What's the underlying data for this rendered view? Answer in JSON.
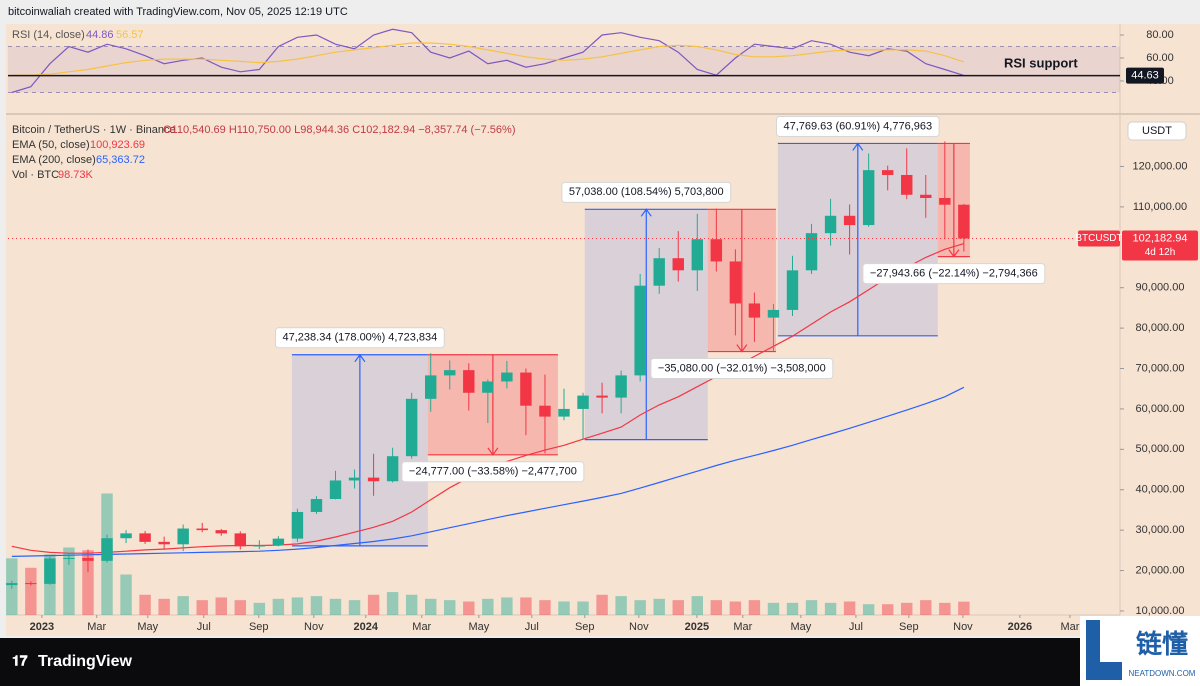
{
  "header": "bitcoinwaliah created with TradingView.com, Nov 05, 2025 12:19 UTC",
  "footer": {
    "logo": "TradingView",
    "watermark": "链懂",
    "watermark_url": "NEATDOWN.COM"
  },
  "chart_data": [
    {
      "type": "candlestick",
      "symbol": "Bitcoin / TetherUS · 1W · Binance",
      "ohlc_label": "O110,540.69 H110,750.00 L98,944.36 C102,182.94 −8,357.74 (−7.56%)",
      "currency": "USDT",
      "up_color": "#22ab94",
      "down_color": "#f23645",
      "x": [
        0,
        1,
        2,
        3,
        4,
        5,
        6,
        7,
        8,
        9,
        10,
        11,
        12,
        13,
        14,
        15,
        16,
        17,
        18,
        19,
        20,
        21,
        22,
        23,
        24,
        25,
        26,
        27,
        28,
        29,
        30,
        31,
        32,
        33,
        34,
        35,
        36,
        37,
        38,
        39,
        40,
        41,
        42,
        43,
        44,
        45,
        46,
        47,
        48,
        49,
        50
      ],
      "open": [
        16400,
        16900,
        16700,
        23000,
        23100,
        22400,
        28000,
        29200,
        27100,
        26500,
        30400,
        30000,
        29200,
        26000,
        26200,
        27900,
        34500,
        37700,
        42300,
        43000,
        42100,
        48300,
        62500,
        68300,
        69600,
        64000,
        66800,
        69000,
        60800,
        58100,
        60000,
        63300,
        62800,
        68300,
        90500,
        97300,
        94300,
        102000,
        96500,
        86100,
        82600,
        84500,
        94300,
        103500,
        107800,
        105500,
        119100,
        117900,
        113000,
        112200,
        110540.69
      ],
      "high": [
        17500,
        17300,
        23400,
        24300,
        25200,
        28900,
        30000,
        29800,
        28400,
        31400,
        31800,
        30300,
        29700,
        27500,
        28500,
        35300,
        38400,
        44700,
        45000,
        48900,
        50400,
        64000,
        73800,
        72000,
        71300,
        67300,
        71900,
        70000,
        68500,
        65000,
        64000,
        66500,
        69500,
        93400,
        99800,
        104000,
        108300,
        109600,
        99500,
        88800,
        86000,
        97900,
        105800,
        112000,
        110600,
        123200,
        120200,
        124500,
        117900,
        126200,
        110750
      ],
      "low": [
        15500,
        16300,
        16500,
        21400,
        19600,
        22000,
        26800,
        26600,
        25300,
        24800,
        29500,
        28600,
        25200,
        25300,
        26000,
        27100,
        34000,
        37600,
        40300,
        38500,
        41800,
        47700,
        59300,
        64800,
        59600,
        56500,
        65100,
        53500,
        49000,
        57200,
        52600,
        58900,
        58900,
        66800,
        88500,
        91500,
        89200,
        94000,
        78200,
        76600,
        74400,
        83000,
        93400,
        100400,
        98200,
        105100,
        114100,
        111900,
        107300,
        102000,
        98944.36
      ],
      "close": [
        16900,
        16700,
        23000,
        23100,
        22400,
        28000,
        29200,
        27100,
        26500,
        30400,
        30000,
        29200,
        26000,
        26200,
        27900,
        34500,
        37700,
        42300,
        43000,
        42100,
        48300,
        62500,
        68300,
        69600,
        64000,
        66800,
        69000,
        60800,
        58100,
        60000,
        63300,
        62800,
        68300,
        90500,
        97300,
        94300,
        102000,
        96500,
        86100,
        82600,
        84500,
        94300,
        103500,
        107800,
        105500,
        119100,
        117900,
        113000,
        112200,
        110540.69,
        102182.94
      ],
      "series": [
        {
          "name": "EMA (50, close)",
          "color": "#f23645",
          "value_label": "100,923.69",
          "values": [
            26000,
            25000,
            24500,
            24300,
            24300,
            24500,
            24800,
            25100,
            25300,
            25600,
            25900,
            26100,
            26200,
            26200,
            26300,
            26600,
            27300,
            28300,
            29500,
            30700,
            32200,
            34500,
            37500,
            40500,
            43000,
            45000,
            47000,
            48500,
            49800,
            51000,
            52500,
            54000,
            55500,
            58500,
            61000,
            63000,
            65500,
            68000,
            70500,
            73000,
            75500,
            78000,
            81000,
            84000,
            86500,
            89500,
            92500,
            95000,
            97500,
            99500,
            100923.69
          ]
        },
        {
          "name": "EMA (200, close)",
          "color": "#2962ff",
          "value_label": "65,363.72",
          "values": [
            23500,
            23600,
            23700,
            23800,
            23900,
            24000,
            24100,
            24200,
            24300,
            24400,
            24500,
            24600,
            24700,
            24800,
            25000,
            25300,
            25700,
            26200,
            26700,
            27200,
            27800,
            28600,
            29600,
            30600,
            31600,
            32600,
            33600,
            34500,
            35400,
            36300,
            37200,
            38100,
            39100,
            40400,
            41800,
            43200,
            44600,
            46000,
            47300,
            48500,
            49700,
            51000,
            52400,
            53800,
            55200,
            56700,
            58200,
            59700,
            61300,
            63000,
            65363.72
          ]
        }
      ],
      "volume": {
        "name": "Vol · BTC",
        "value_label": "98.73K",
        "ylim": [
          0,
          1000000
        ],
        "values": [
          420000,
          350000,
          450000,
          500000,
          480000,
          900000,
          300000,
          150000,
          120000,
          140000,
          110000,
          130000,
          110000,
          90000,
          120000,
          130000,
          140000,
          120000,
          110000,
          150000,
          170000,
          150000,
          120000,
          110000,
          100000,
          120000,
          130000,
          130000,
          110000,
          100000,
          100000,
          150000,
          140000,
          110000,
          120000,
          110000,
          140000,
          110000,
          100000,
          110000,
          90000,
          90000,
          110000,
          90000,
          100000,
          80000,
          80000,
          90000,
          110000,
          90000,
          98730
        ]
      },
      "last_price": {
        "value": 102182.94,
        "label": "102,182.94",
        "symbol": "BTCUSDT",
        "countdown": "4d 12h"
      },
      "xlim": [
        -0.2,
        58.2
      ],
      "xticks": [
        {
          "value": 1.58,
          "label": "2023"
        },
        {
          "value": 4.46,
          "label": "Mar"
        },
        {
          "value": 7.14,
          "label": "May"
        },
        {
          "value": 10.08,
          "label": "Jul"
        },
        {
          "value": 12.97,
          "label": "Sep"
        },
        {
          "value": 15.86,
          "label": "Nov"
        },
        {
          "value": 18.59,
          "label": "2024"
        },
        {
          "value": 21.53,
          "label": "Mar"
        },
        {
          "value": 24.53,
          "label": "May"
        },
        {
          "value": 27.31,
          "label": "Jul"
        },
        {
          "value": 30.09,
          "label": "Sep"
        },
        {
          "value": 32.93,
          "label": "Nov"
        },
        {
          "value": 35.98,
          "label": "2025"
        },
        {
          "value": 38.39,
          "label": "Mar"
        },
        {
          "value": 41.44,
          "label": "May"
        },
        {
          "value": 44.33,
          "label": "Jul"
        },
        {
          "value": 47.11,
          "label": "Sep"
        },
        {
          "value": 49.95,
          "label": "Nov"
        },
        {
          "value": 52.94,
          "label": "2026"
        },
        {
          "value": 55.57,
          "label": "Mar"
        }
      ],
      "ylim": [
        9000,
        132000
      ],
      "yticks": [
        {
          "value": 10000,
          "label": "10,000.00"
        },
        {
          "value": 20000,
          "label": "20,000.00"
        },
        {
          "value": 30000,
          "label": "30,000.00"
        },
        {
          "value": 40000,
          "label": "40,000.00"
        },
        {
          "value": 50000,
          "label": "50,000.00"
        },
        {
          "value": 60000,
          "label": "60,000.00"
        },
        {
          "value": 70000,
          "label": "70,000.00"
        },
        {
          "value": 80000,
          "label": "80,000.00"
        },
        {
          "value": 90000,
          "label": "90,000.00"
        },
        {
          "value": 110000,
          "label": "110,000.00"
        },
        {
          "value": 120000,
          "label": "120,000.00"
        }
      ],
      "measurements": [
        {
          "label": "47,238.34 (178.00%) 4,723,834",
          "color": "#2962ff",
          "x": [
            14.71,
            21.85
          ],
          "y": [
            26100,
            73400
          ]
        },
        {
          "label": "−24,777.00 (−33.58%) −2,477,700",
          "color": "#f23645",
          "x": [
            21.85,
            28.68
          ],
          "y": [
            73400,
            48650
          ]
        },
        {
          "label": "57,038.00 (108.54%) 5,703,800",
          "color": "#2962ff",
          "x": [
            30.09,
            36.55
          ],
          "y": [
            52400,
            109400
          ]
        },
        {
          "label": "−35,080.00 (−32.01%) −3,508,000",
          "color": "#f23645",
          "x": [
            36.55,
            40.13
          ],
          "y": [
            109400,
            74200
          ]
        },
        {
          "label": "47,769.63 (60.91%) 4,776,963",
          "color": "#2962ff",
          "x": [
            40.23,
            48.63
          ],
          "y": [
            78100,
            125700
          ]
        },
        {
          "label": "−27,943.66 (−22.14%) −2,794,366",
          "color": "#f23645",
          "x": [
            48.63,
            50.32
          ],
          "y": [
            125700,
            97700
          ]
        }
      ]
    },
    {
      "type": "line",
      "title": "RSI (14, close)",
      "x": [
        0,
        1,
        2,
        3,
        4,
        5,
        6,
        7,
        8,
        9,
        10,
        11,
        12,
        13,
        14,
        15,
        16,
        17,
        18,
        19,
        20,
        21,
        22,
        23,
        24,
        25,
        26,
        27,
        28,
        29,
        30,
        31,
        32,
        33,
        34,
        35,
        36,
        37,
        38,
        39,
        40,
        41,
        42,
        43,
        44,
        45,
        46,
        47,
        48,
        49,
        50
      ],
      "xlim": [
        -0.2,
        58.2
      ],
      "series": [
        {
          "color": "#7e57c2",
          "values": [
            30,
            35,
            55,
            70,
            65,
            72,
            68,
            62,
            55,
            58,
            60,
            52,
            48,
            50,
            70,
            78,
            80,
            72,
            68,
            80,
            85,
            82,
            65,
            60,
            66,
            55,
            58,
            52,
            55,
            60,
            65,
            80,
            82,
            78,
            75,
            65,
            50,
            45,
            60,
            72,
            70,
            68,
            75,
            72,
            65,
            62,
            68,
            66,
            55,
            50,
            44.86
          ]
        },
        {
          "color": "#f5c342",
          "values": [
            45,
            45,
            46,
            48,
            50,
            53,
            56,
            58,
            59,
            59,
            59,
            58,
            57,
            56,
            57,
            59,
            62,
            65,
            67,
            69,
            71,
            73,
            73,
            72,
            70,
            67,
            64,
            61,
            59,
            58,
            59,
            61,
            64,
            67,
            70,
            71,
            70,
            67,
            63,
            61,
            61,
            62,
            64,
            66,
            67,
            67,
            67,
            67,
            66,
            62,
            56.57
          ]
        }
      ],
      "band": [
        30,
        70
      ],
      "level": {
        "value": 44.63,
        "label": "44.63",
        "note": "RSI support"
      },
      "ylim": [
        13,
        88.7
      ],
      "yticks": [
        {
          "value": 40,
          "label": "40.00"
        },
        {
          "value": 60,
          "label": "60.00"
        },
        {
          "value": 80,
          "label": "80.00"
        }
      ]
    }
  ]
}
